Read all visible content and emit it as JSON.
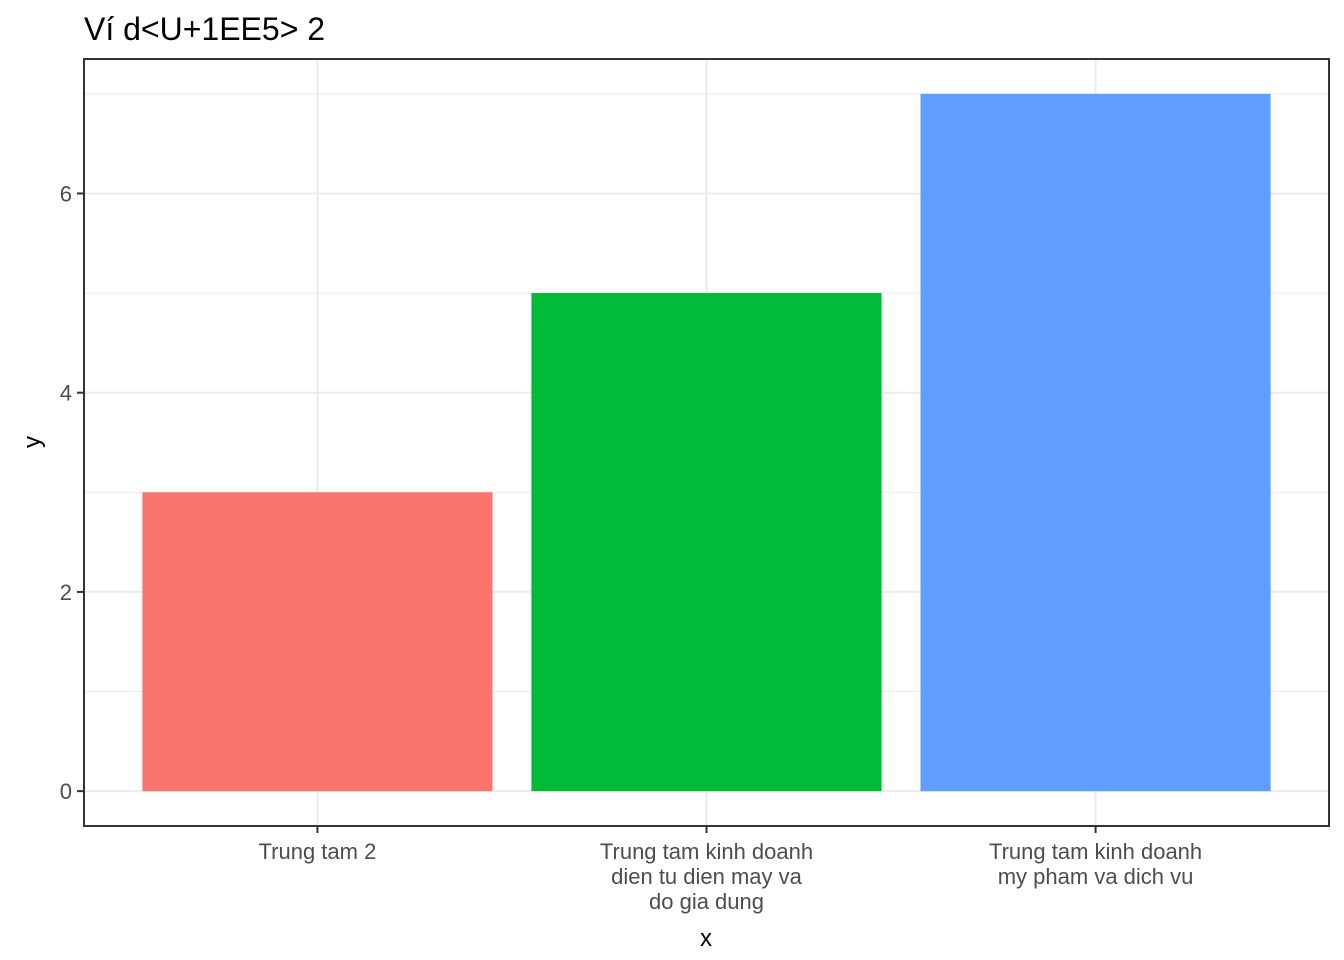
{
  "chart_data": {
    "type": "bar",
    "title": "Ví d<U+1EE5> 2",
    "xlabel": "x",
    "ylabel": "y",
    "categories": [
      [
        "Trung tam 2"
      ],
      [
        "Trung tam kinh doanh",
        "dien tu dien may va",
        "do gia dung"
      ],
      [
        "Trung tam kinh doanh",
        "my pham va dich vu"
      ]
    ],
    "values": [
      3,
      5,
      7
    ],
    "colors": [
      "#F8766D",
      "#00BA38",
      "#619CFF"
    ],
    "ylim": [
      -0.35,
      7.35
    ],
    "yticks": [
      0,
      2,
      4,
      6
    ],
    "grid": true,
    "legend": "none"
  }
}
